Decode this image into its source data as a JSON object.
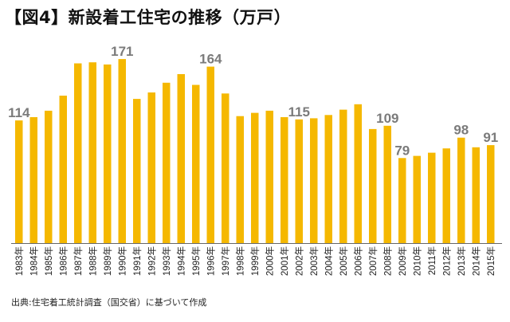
{
  "chart_data": {
    "type": "bar",
    "title": "【図4】新設着工住宅の推移（万戸）",
    "source": "出典:住宅着工統計調査（国交省）に基づいて作成",
    "categories": [
      "1983年",
      "1984年",
      "1985年",
      "1986年",
      "1987年",
      "1988年",
      "1989年",
      "1990年",
      "1991年",
      "1992年",
      "1993年",
      "1994年",
      "1995年",
      "1996年",
      "1997年",
      "1998年",
      "1999年",
      "2000年",
      "2001年",
      "2002年",
      "2003年",
      "2004年",
      "2005年",
      "2006年",
      "2007年",
      "2008年",
      "2009年",
      "2010年",
      "2011年",
      "2012年",
      "2013年",
      "2014年",
      "2015年"
    ],
    "values": [
      114,
      117,
      123,
      137,
      167,
      168,
      166,
      171,
      134,
      140,
      149,
      157,
      147,
      164,
      139,
      118,
      121,
      123,
      117,
      115,
      116,
      119,
      124,
      129,
      106,
      109,
      79,
      81,
      84,
      88,
      98,
      89,
      91
    ],
    "data_labels": {
      "1983年": "114",
      "1990年": "171",
      "1996年": "164",
      "2002年": "115",
      "2008年": "109",
      "2009年": "79",
      "2013年": "98",
      "2015年": "91"
    },
    "bar_color": "#F5B800",
    "label_color": "#7b7b7b",
    "ylim": [
      0,
      190
    ],
    "grid": false
  }
}
